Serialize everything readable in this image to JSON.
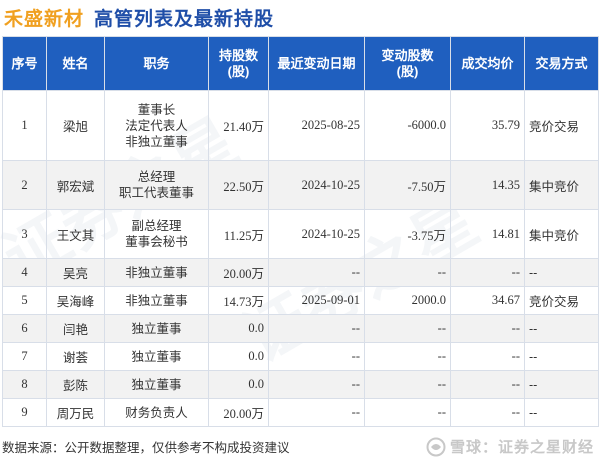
{
  "title": {
    "company": "禾盛新材",
    "text": "高管列表及最新持股"
  },
  "headers": {
    "seq": "序号",
    "name": "姓名",
    "position": "职务",
    "holding_line1": "持股数",
    "holding_line2": "(股)",
    "date": "最近变动日期",
    "change_line1": "变动股数",
    "change_line2": "(股)",
    "price": "成交均价",
    "method": "交易方式"
  },
  "rows": [
    {
      "seq": "1",
      "name": "梁旭",
      "position": [
        "董事长",
        "法定代表人",
        "非独立董事"
      ],
      "holding": "21.40万",
      "date": "2025-08-25",
      "change": "-6000.0",
      "change_dir": "neg",
      "price": "35.79",
      "price_dir": "neg",
      "method": "竞价交易"
    },
    {
      "seq": "2",
      "name": "郭宏斌",
      "position": [
        "总经理",
        "职工代表董事"
      ],
      "holding": "22.50万",
      "date": "2024-10-25",
      "change": "-7.50万",
      "change_dir": "neg",
      "price": "14.35",
      "price_dir": "neg",
      "method": "集中竞价"
    },
    {
      "seq": "3",
      "name": "王文其",
      "position": [
        "副总经理",
        "董事会秘书"
      ],
      "holding": "11.25万",
      "date": "2024-10-25",
      "change": "-3.75万",
      "change_dir": "neg",
      "price": "14.81",
      "price_dir": "neg",
      "method": "集中竞价"
    },
    {
      "seq": "4",
      "name": "吴亮",
      "position": [
        "非独立董事"
      ],
      "holding": "20.00万",
      "date": "--",
      "change": "--",
      "change_dir": "none",
      "price": "--",
      "price_dir": "none",
      "method": "--"
    },
    {
      "seq": "5",
      "name": "吴海峰",
      "position": [
        "非独立董事"
      ],
      "holding": "14.73万",
      "date": "2025-09-01",
      "change": "2000.0",
      "change_dir": "pos",
      "price": "34.67",
      "price_dir": "pos",
      "method": "竞价交易"
    },
    {
      "seq": "6",
      "name": "闫艳",
      "position": [
        "独立董事"
      ],
      "holding": "0.0",
      "date": "--",
      "change": "--",
      "change_dir": "none",
      "price": "--",
      "price_dir": "none",
      "method": "--"
    },
    {
      "seq": "7",
      "name": "谢荟",
      "position": [
        "独立董事"
      ],
      "holding": "0.0",
      "date": "--",
      "change": "--",
      "change_dir": "none",
      "price": "--",
      "price_dir": "none",
      "method": "--"
    },
    {
      "seq": "8",
      "name": "彭陈",
      "position": [
        "独立董事"
      ],
      "holding": "0.0",
      "date": "--",
      "change": "--",
      "change_dir": "none",
      "price": "--",
      "price_dir": "none",
      "method": "--"
    },
    {
      "seq": "9",
      "name": "周万民",
      "position": [
        "财务负责人"
      ],
      "holding": "20.00万",
      "date": "--",
      "change": "--",
      "change_dir": "none",
      "price": "--",
      "price_dir": "none",
      "method": "--"
    }
  ],
  "footer": {
    "source": "数据来源：公开数据整理，仅供参考不构成投资建议",
    "brand": "雪球：证券之星财经"
  },
  "watermark": "证券之星",
  "colors": {
    "header_bg": "#1f5fbf",
    "company": "#f0a020",
    "title": "#1f4ea8",
    "up": "#d42020",
    "down": "#1e9a3a"
  }
}
